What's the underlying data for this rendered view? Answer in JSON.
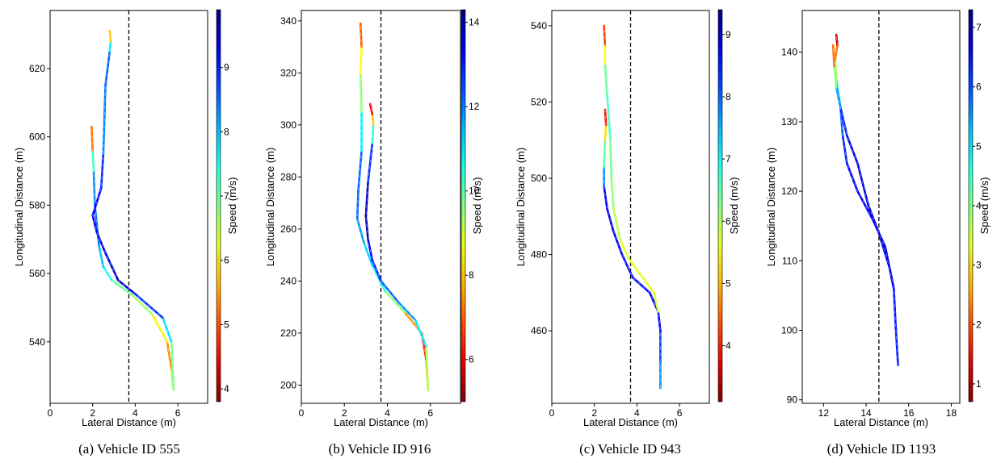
{
  "chart_data": [
    {
      "type": "line",
      "caption": "(a) Vehicle ID 555",
      "xlabel": "Lateral Distance (m)",
      "ylabel": "Longitudinal Distance (m)",
      "colorbar_label": "Speed (m/s)",
      "xlim": [
        0,
        7.4
      ],
      "ylim": [
        522,
        637
      ],
      "xticks": [
        0,
        2,
        4,
        6
      ],
      "yticks": [
        540,
        560,
        580,
        600,
        620
      ],
      "cbar_range": [
        3.8,
        9.9
      ],
      "cbar_ticks": [
        4,
        5,
        6,
        7,
        8,
        9
      ],
      "lane_boundary_x": 3.7,
      "series": [
        {
          "points": [
            [
              5.8,
              526,
              6.5
            ],
            [
              5.7,
              532,
              5.3
            ],
            [
              5.5,
              540,
              5.5
            ],
            [
              4.8,
              548,
              6.5
            ],
            [
              3.8,
              554,
              6.8
            ],
            [
              2.9,
              558,
              7.2
            ],
            [
              2.5,
              562,
              7.8
            ],
            [
              2.3,
              568,
              8.2
            ],
            [
              2.2,
              574,
              8.5
            ],
            [
              2.1,
              580,
              8.6
            ],
            [
              2.05,
              590,
              8.0
            ],
            [
              2.0,
              596,
              6.5
            ],
            [
              1.95,
              603,
              4.0
            ]
          ]
        },
        {
          "points": [
            [
              5.8,
              526,
              6.5
            ],
            [
              5.7,
              540,
              7.3
            ],
            [
              5.3,
              547,
              8.3
            ],
            [
              4.0,
              554,
              9.3
            ],
            [
              3.2,
              558,
              9.5
            ],
            [
              2.9,
              562,
              9.4
            ],
            [
              2.6,
              566,
              9.3
            ],
            [
              2.2,
              572,
              9.2
            ],
            [
              2.0,
              577,
              9.1
            ],
            [
              2.4,
              585,
              9.3
            ],
            [
              2.5,
              595,
              8.5
            ],
            [
              2.55,
              605,
              8.2
            ],
            [
              2.6,
              615,
              8.6
            ],
            [
              2.8,
              625,
              8.5
            ],
            [
              2.85,
              628,
              7.0
            ],
            [
              2.8,
              631,
              4.5
            ]
          ]
        }
      ]
    },
    {
      "type": "line",
      "caption": "(b) Vehicle ID 916",
      "xlabel": "Lateral Distance (m)",
      "ylabel": "Longitudinal Distance (m)",
      "colorbar_label": "Speed (m/s)",
      "xlim": [
        0,
        7.4
      ],
      "ylim": [
        193,
        344
      ],
      "xticks": [
        0,
        2,
        4,
        6
      ],
      "yticks": [
        200,
        220,
        240,
        260,
        280,
        300,
        320,
        340
      ],
      "cbar_range": [
        5.0,
        14.3
      ],
      "cbar_ticks": [
        6,
        8,
        10,
        12,
        14
      ],
      "lane_boundary_x": 3.7,
      "series": [
        {
          "points": [
            [
              5.9,
              198,
              8.0
            ],
            [
              5.8,
              210,
              7.0
            ],
            [
              5.6,
              220,
              6.0
            ],
            [
              4.8,
              228,
              9.0
            ],
            [
              3.9,
              236,
              10.0
            ],
            [
              3.3,
              246,
              11.0
            ],
            [
              2.9,
              255,
              11.5
            ],
            [
              2.6,
              264,
              12.0
            ],
            [
              2.65,
              275,
              12.5
            ],
            [
              2.8,
              290,
              12.0
            ],
            [
              2.8,
              305,
              10.0
            ],
            [
              2.75,
              320,
              9.0
            ],
            [
              2.8,
              330,
              8.0
            ],
            [
              2.75,
              339,
              6.0
            ]
          ]
        },
        {
          "points": [
            [
              5.9,
              198,
              8.0
            ],
            [
              5.8,
              215,
              10.5
            ],
            [
              5.3,
              225,
              11.5
            ],
            [
              4.5,
              232,
              12.0
            ],
            [
              3.7,
              240,
              12.5
            ],
            [
              3.3,
              248,
              13.0
            ],
            [
              3.1,
              256,
              13.5
            ],
            [
              3.0,
              265,
              14.0
            ],
            [
              3.1,
              278,
              13.5
            ],
            [
              3.3,
              293,
              12.0
            ],
            [
              3.35,
              300,
              9.0
            ],
            [
              3.3,
              304,
              7.0
            ],
            [
              3.2,
              308,
              5.5
            ]
          ]
        }
      ]
    },
    {
      "type": "line",
      "caption": "(c) Vehicle ID 943",
      "xlabel": "Lateral Distance (m)",
      "ylabel": "Longitudinal Distance (m)",
      "colorbar_label": "Speed (m/s)",
      "xlim": [
        0,
        7.4
      ],
      "ylim": [
        441,
        544
      ],
      "xticks": [
        0,
        2,
        4,
        6
      ],
      "yticks": [
        460,
        480,
        500,
        520,
        540
      ],
      "cbar_range": [
        3.1,
        9.4
      ],
      "cbar_ticks": [
        4,
        5,
        6,
        7,
        8,
        9
      ],
      "lane_boundary_x": 3.7,
      "series": [
        {
          "points": [
            [
              5.1,
              445,
              7.5
            ],
            [
              5.1,
              452,
              8.0
            ],
            [
              5.1,
              460,
              8.5
            ],
            [
              5.0,
              465,
              8.8
            ],
            [
              4.6,
              470,
              8.6
            ],
            [
              3.8,
              474,
              8.5
            ],
            [
              3.3,
              480,
              8.6
            ],
            [
              2.9,
              486,
              8.7
            ],
            [
              2.6,
              492,
              8.8
            ],
            [
              2.45,
              498,
              8.5
            ],
            [
              2.45,
              503,
              7.0
            ],
            [
              2.5,
              510,
              6.0
            ],
            [
              2.55,
              514,
              4.5
            ],
            [
              2.5,
              518,
              3.5
            ]
          ]
        },
        {
          "points": [
            [
              5.0,
              465,
              6.0
            ],
            [
              4.8,
              470,
              5.5
            ],
            [
              4.0,
              476,
              5.8
            ],
            [
              3.6,
              479,
              5.5
            ],
            [
              3.2,
              484,
              5.8
            ],
            [
              2.9,
              492,
              6.0
            ],
            [
              2.8,
              500,
              6.2
            ],
            [
              2.75,
              510,
              6.4
            ],
            [
              2.6,
              522,
              6.8
            ],
            [
              2.5,
              530,
              6.0
            ],
            [
              2.5,
              535,
              5.0
            ],
            [
              2.45,
              540,
              3.5
            ]
          ]
        }
      ]
    },
    {
      "type": "line",
      "caption": "(d) Vehicle ID 1193",
      "xlabel": "Lateral Distance (m)",
      "ylabel": "Longitudinal Distance (m)",
      "colorbar_label": "Speed (m/s)",
      "xlim": [
        11,
        18.4
      ],
      "ylim": [
        89.5,
        146
      ],
      "xticks": [
        12,
        14,
        16,
        18
      ],
      "yticks": [
        90,
        100,
        110,
        120,
        130,
        140
      ],
      "cbar_range": [
        0.7,
        7.3
      ],
      "cbar_ticks": [
        1,
        2,
        3,
        4,
        5,
        6,
        7
      ],
      "lane_boundary_x": 14.6,
      "series": [
        {
          "points": [
            [
              15.5,
              95,
              6.3
            ],
            [
              15.4,
              100,
              6.3
            ],
            [
              15.3,
              106,
              6.4
            ],
            [
              14.9,
              112,
              6.5
            ],
            [
              14.3,
              116,
              6.6
            ],
            [
              13.6,
              120,
              6.5
            ],
            [
              13.1,
              124,
              6.4
            ],
            [
              12.9,
              128,
              6.2
            ],
            [
              12.8,
              132,
              5.5
            ],
            [
              12.6,
              136,
              4.5
            ],
            [
              12.55,
              139,
              3.0
            ],
            [
              12.65,
              141,
              1.5
            ],
            [
              12.6,
              142.5,
              1.0
            ]
          ]
        },
        {
          "points": [
            [
              15.3,
              106,
              6.5
            ],
            [
              15.1,
              109,
              6.6
            ],
            [
              14.6,
              114,
              6.7
            ],
            [
              14.1,
              118,
              6.7
            ],
            [
              13.6,
              124,
              6.6
            ],
            [
              13.1,
              128,
              6.5
            ],
            [
              12.8,
              132,
              6.0
            ],
            [
              12.6,
              135,
              5.0
            ],
            [
              12.5,
              138,
              3.0
            ],
            [
              12.45,
              141,
              1.5
            ]
          ]
        }
      ]
    }
  ]
}
